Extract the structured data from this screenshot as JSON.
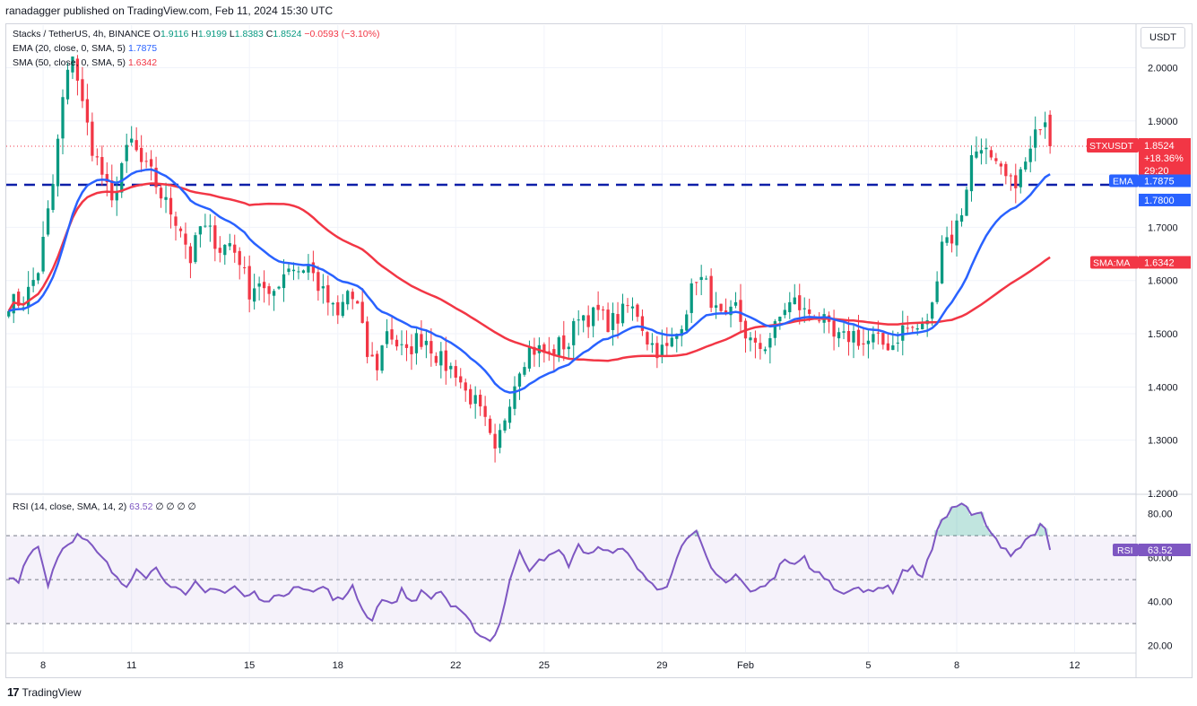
{
  "header": {
    "published_by": "ranadagger published on TradingView.com, Feb 11, 2024 15:30 UTC"
  },
  "legend": {
    "symbol": "Stacks / TetherUS, 4h, BINANCE",
    "open_label": "O",
    "open": "1.9116",
    "high_label": "H",
    "high": "1.9199",
    "low_label": "L",
    "low": "1.8383",
    "close_label": "C",
    "close": "1.8524",
    "change": "−0.0593 (−3.10%)",
    "ema_label": "EMA (20, close, 0, SMA, 5)",
    "ema_value": "1.7875",
    "sma_label": "SMA (50, close, 0, SMA, 5)",
    "sma_value": "1.6342",
    "rsi_label": "RSI (14, close, SMA, 14, 2)",
    "rsi_value": "63.52",
    "rsi_extra": "∅ ∅ ∅ ∅"
  },
  "currency_button": "USDT",
  "footer": {
    "brand": "TradingView",
    "logo_glyph": "17"
  },
  "colors": {
    "up": "#089981",
    "down": "#f23645",
    "ema": "#2962ff",
    "sma": "#f23645",
    "rsi": "#7e57c2",
    "support": "#0d1fa8"
  },
  "chart_data": {
    "type": "candlestick",
    "title": "Stacks / TetherUS, 4h, BINANCE",
    "price_axis": {
      "ylim": [
        1.2,
        2.08
      ],
      "ticks": [
        "2.0000",
        "1.9000",
        "1.8000",
        "1.7000",
        "1.6000",
        "1.5000",
        "1.4000",
        "1.3000",
        "1.2000"
      ]
    },
    "rsi_axis": {
      "ylim": [
        17,
        88
      ],
      "ticks": [
        "80.00",
        "60.00",
        "40.00",
        "20.00"
      ],
      "overbought": 70,
      "oversold": 30,
      "mid": 50
    },
    "x_ticks": [
      {
        "label": "8",
        "t": 7
      },
      {
        "label": "11",
        "t": 25
      },
      {
        "label": "15",
        "t": 49
      },
      {
        "label": "18",
        "t": 67
      },
      {
        "label": "22",
        "t": 91
      },
      {
        "label": "25",
        "t": 109
      },
      {
        "label": "29",
        "t": 133
      },
      {
        "label": "Feb",
        "t": 150
      },
      {
        "label": "5",
        "t": 175
      },
      {
        "label": "8",
        "t": 193
      },
      {
        "label": "12",
        "t": 217
      }
    ],
    "total_slots": 230,
    "support_level": 1.78,
    "price_labels": [
      {
        "name": "STXUSDT",
        "value": "1.8524",
        "extra": [
          "+18.36%",
          "29:20"
        ],
        "price": 1.8524,
        "color": "#f23645"
      },
      {
        "name": "EMA",
        "value": "1.7875",
        "price": 1.7875,
        "color": "#2962ff"
      },
      {
        "name": "",
        "value": "1.7800",
        "price": 1.78,
        "color": "#2962ff"
      },
      {
        "name": "SMA:MA",
        "value": "1.6342",
        "price": 1.6342,
        "color": "#f23645"
      }
    ],
    "rsi_label": {
      "name": "RSI",
      "value": "63.52",
      "rsi": 63.52
    },
    "anchors": [
      [
        0,
        1.56
      ],
      [
        3,
        1.56
      ],
      [
        6,
        1.62
      ],
      [
        9,
        1.78
      ],
      [
        11,
        1.94
      ],
      [
        13,
        2.03
      ],
      [
        15,
        1.93
      ],
      [
        17,
        1.85
      ],
      [
        19,
        1.8
      ],
      [
        21,
        1.74
      ],
      [
        23,
        1.82
      ],
      [
        25,
        1.86
      ],
      [
        27,
        1.82
      ],
      [
        29,
        1.8
      ],
      [
        31,
        1.76
      ],
      [
        33,
        1.73
      ],
      [
        35,
        1.7
      ],
      [
        37,
        1.64
      ],
      [
        39,
        1.7
      ],
      [
        41,
        1.69
      ],
      [
        43,
        1.66
      ],
      [
        45,
        1.67
      ],
      [
        47,
        1.64
      ],
      [
        49,
        1.58
      ],
      [
        51,
        1.6
      ],
      [
        53,
        1.56
      ],
      [
        55,
        1.6
      ],
      [
        57,
        1.63
      ],
      [
        59,
        1.62
      ],
      [
        61,
        1.63
      ],
      [
        63,
        1.59
      ],
      [
        65,
        1.56
      ],
      [
        67,
        1.53
      ],
      [
        69,
        1.58
      ],
      [
        71,
        1.55
      ],
      [
        73,
        1.46
      ],
      [
        75,
        1.44
      ],
      [
        77,
        1.51
      ],
      [
        79,
        1.48
      ],
      [
        81,
        1.46
      ],
      [
        83,
        1.49
      ],
      [
        85,
        1.49
      ],
      [
        87,
        1.46
      ],
      [
        89,
        1.44
      ],
      [
        91,
        1.43
      ],
      [
        93,
        1.39
      ],
      [
        95,
        1.37
      ],
      [
        97,
        1.33
      ],
      [
        99,
        1.27
      ],
      [
        100,
        1.31
      ],
      [
        102,
        1.38
      ],
      [
        104,
        1.44
      ],
      [
        106,
        1.47
      ],
      [
        108,
        1.47
      ],
      [
        110,
        1.46
      ],
      [
        112,
        1.48
      ],
      [
        114,
        1.48
      ],
      [
        116,
        1.54
      ],
      [
        118,
        1.53
      ],
      [
        120,
        1.54
      ],
      [
        122,
        1.52
      ],
      [
        124,
        1.53
      ],
      [
        126,
        1.55
      ],
      [
        128,
        1.54
      ],
      [
        130,
        1.49
      ],
      [
        132,
        1.47
      ],
      [
        134,
        1.47
      ],
      [
        136,
        1.5
      ],
      [
        138,
        1.55
      ],
      [
        140,
        1.61
      ],
      [
        142,
        1.59
      ],
      [
        144,
        1.54
      ],
      [
        146,
        1.52
      ],
      [
        148,
        1.55
      ],
      [
        150,
        1.5
      ],
      [
        152,
        1.47
      ],
      [
        154,
        1.48
      ],
      [
        156,
        1.51
      ],
      [
        158,
        1.55
      ],
      [
        160,
        1.56
      ],
      [
        162,
        1.54
      ],
      [
        164,
        1.54
      ],
      [
        166,
        1.52
      ],
      [
        168,
        1.49
      ],
      [
        170,
        1.49
      ],
      [
        172,
        1.5
      ],
      [
        174,
        1.48
      ],
      [
        176,
        1.49
      ],
      [
        178,
        1.48
      ],
      [
        180,
        1.48
      ],
      [
        182,
        1.51
      ],
      [
        184,
        1.51
      ],
      [
        186,
        1.51
      ],
      [
        188,
        1.55
      ],
      [
        190,
        1.68
      ],
      [
        192,
        1.68
      ],
      [
        194,
        1.73
      ],
      [
        196,
        1.83
      ],
      [
        198,
        1.86
      ],
      [
        200,
        1.82
      ],
      [
        202,
        1.8
      ],
      [
        204,
        1.78
      ],
      [
        206,
        1.8
      ],
      [
        208,
        1.84
      ],
      [
        210,
        1.9
      ],
      [
        211,
        1.91
      ],
      [
        212,
        1.8524
      ]
    ],
    "rsi_anchors": [
      [
        0,
        51
      ],
      [
        2,
        50
      ],
      [
        4,
        62
      ],
      [
        6,
        65
      ],
      [
        8,
        48
      ],
      [
        10,
        61
      ],
      [
        12,
        67
      ],
      [
        14,
        70
      ],
      [
        16,
        67
      ],
      [
        18,
        62
      ],
      [
        20,
        57
      ],
      [
        22,
        50
      ],
      [
        24,
        47
      ],
      [
        26,
        56
      ],
      [
        28,
        52
      ],
      [
        30,
        55
      ],
      [
        32,
        50
      ],
      [
        34,
        46
      ],
      [
        36,
        42
      ],
      [
        38,
        48
      ],
      [
        40,
        44
      ],
      [
        42,
        47
      ],
      [
        44,
        44
      ],
      [
        46,
        47
      ],
      [
        48,
        42
      ],
      [
        50,
        44
      ],
      [
        52,
        39
      ],
      [
        54,
        44
      ],
      [
        56,
        41
      ],
      [
        58,
        48
      ],
      [
        60,
        47
      ],
      [
        62,
        44
      ],
      [
        64,
        47
      ],
      [
        66,
        42
      ],
      [
        68,
        40
      ],
      [
        70,
        48
      ],
      [
        72,
        36
      ],
      [
        74,
        32
      ],
      [
        76,
        42
      ],
      [
        78,
        38
      ],
      [
        80,
        45
      ],
      [
        82,
        40
      ],
      [
        84,
        44
      ],
      [
        86,
        42
      ],
      [
        88,
        45
      ],
      [
        90,
        38
      ],
      [
        92,
        35
      ],
      [
        94,
        30
      ],
      [
        96,
        25
      ],
      [
        98,
        22
      ],
      [
        100,
        30
      ],
      [
        102,
        50
      ],
      [
        104,
        62
      ],
      [
        106,
        55
      ],
      [
        108,
        60
      ],
      [
        110,
        60
      ],
      [
        112,
        63
      ],
      [
        114,
        57
      ],
      [
        116,
        65
      ],
      [
        118,
        62
      ],
      [
        120,
        64
      ],
      [
        122,
        62
      ],
      [
        124,
        65
      ],
      [
        126,
        61
      ],
      [
        128,
        56
      ],
      [
        130,
        50
      ],
      [
        132,
        45
      ],
      [
        134,
        48
      ],
      [
        136,
        60
      ],
      [
        138,
        68
      ],
      [
        140,
        71
      ],
      [
        142,
        60
      ],
      [
        144,
        52
      ],
      [
        146,
        48
      ],
      [
        148,
        52
      ],
      [
        150,
        47
      ],
      [
        152,
        44
      ],
      [
        154,
        48
      ],
      [
        156,
        52
      ],
      [
        158,
        60
      ],
      [
        160,
        56
      ],
      [
        162,
        60
      ],
      [
        164,
        53
      ],
      [
        166,
        52
      ],
      [
        168,
        46
      ],
      [
        170,
        45
      ],
      [
        172,
        46
      ],
      [
        174,
        44
      ],
      [
        176,
        46
      ],
      [
        178,
        47
      ],
      [
        180,
        45
      ],
      [
        182,
        54
      ],
      [
        184,
        55
      ],
      [
        186,
        52
      ],
      [
        188,
        64
      ],
      [
        190,
        78
      ],
      [
        192,
        82
      ],
      [
        194,
        85
      ],
      [
        196,
        79
      ],
      [
        198,
        80
      ],
      [
        200,
        70
      ],
      [
        202,
        66
      ],
      [
        204,
        62
      ],
      [
        206,
        65
      ],
      [
        208,
        70
      ],
      [
        210,
        74
      ],
      [
        211,
        72
      ],
      [
        212,
        63.52
      ]
    ]
  }
}
